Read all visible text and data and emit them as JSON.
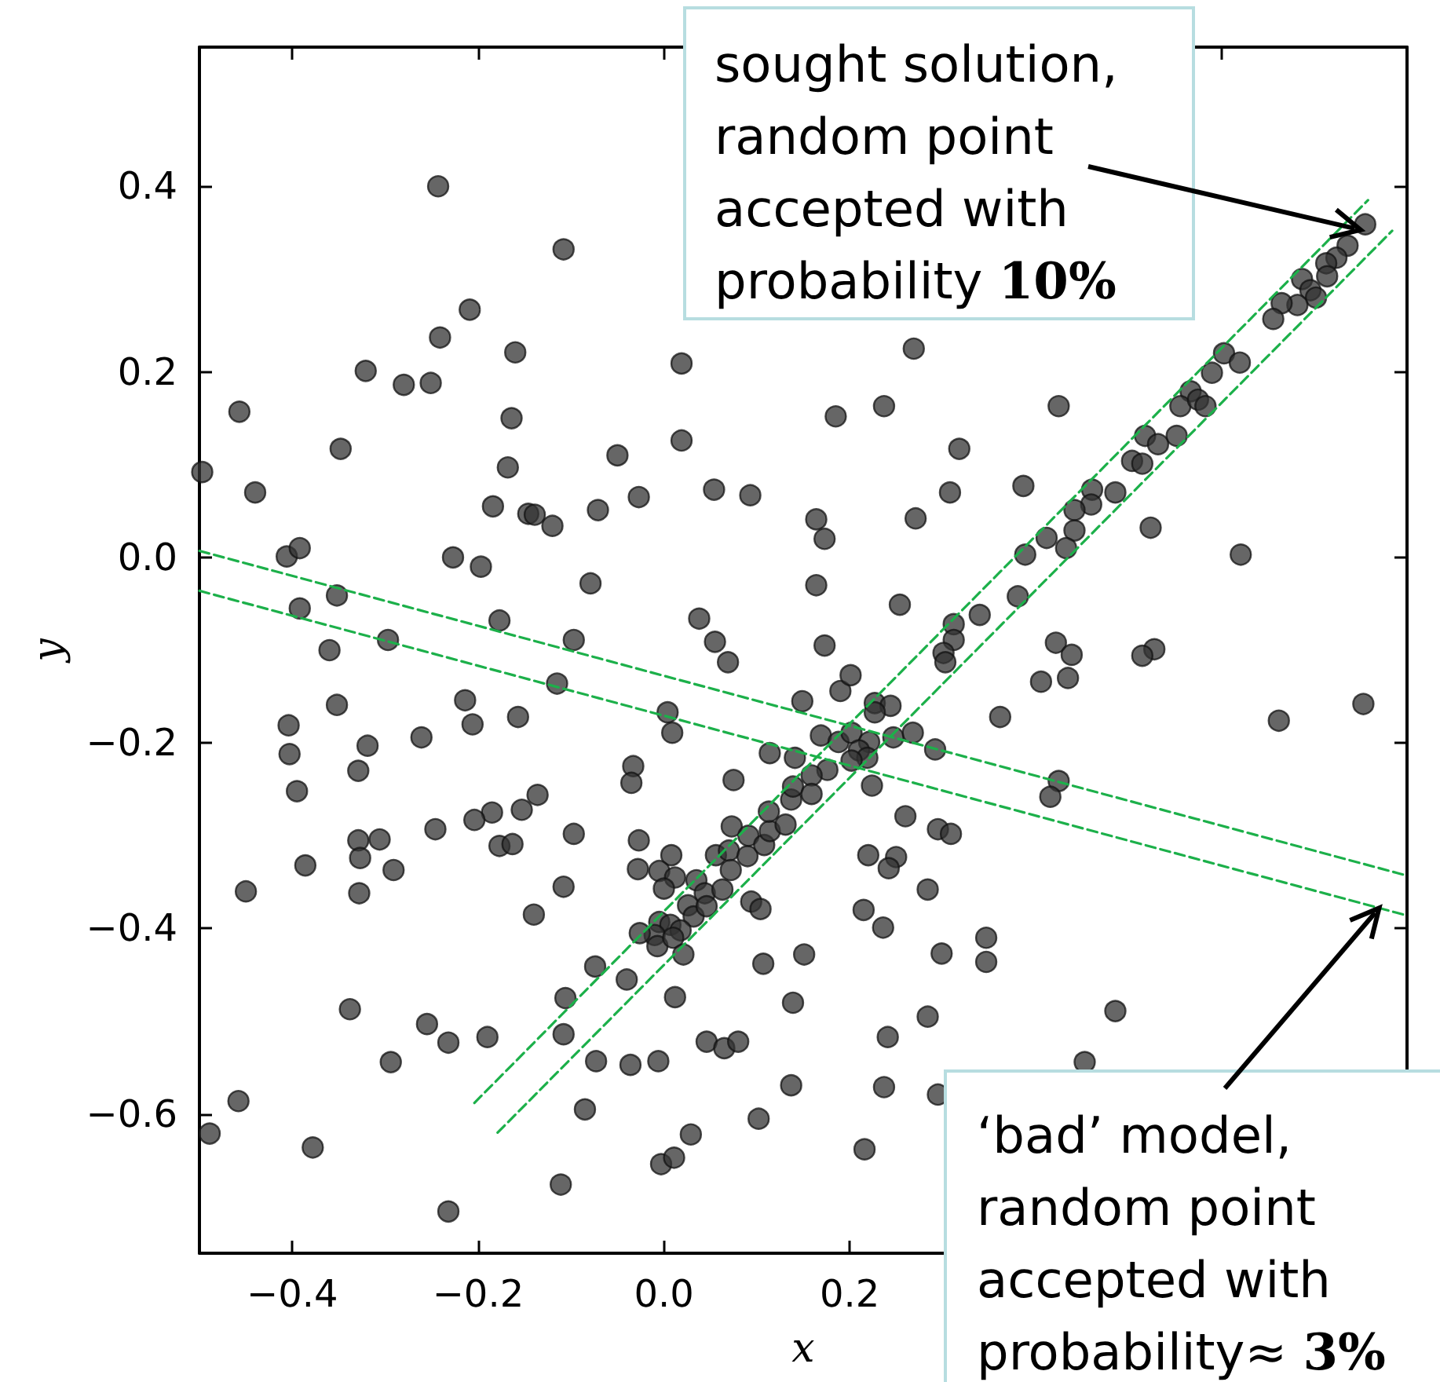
{
  "chart_data": {
    "type": "scatter",
    "xlabel": "x",
    "ylabel": "y",
    "xlim": [
      -0.5,
      0.8
    ],
    "ylim": [
      -0.75,
      0.55
    ],
    "xticks": [
      {
        "value": -0.4,
        "label": "−0.4"
      },
      {
        "value": -0.2,
        "label": "−0.2"
      },
      {
        "value": 0,
        "label": "0.0"
      },
      {
        "value": 0.2,
        "label": "0.2"
      },
      {
        "value": 0.4,
        "label": null
      },
      {
        "value": 0.6,
        "label": null
      },
      {
        "value": 0.8,
        "label": null
      }
    ],
    "yticks": [
      {
        "value": -0.6,
        "label": "−0.6"
      },
      {
        "value": -0.4,
        "label": "−0.4"
      },
      {
        "value": -0.2,
        "label": "−0.2"
      },
      {
        "value": 0,
        "label": "0.0"
      },
      {
        "value": 0.2,
        "label": "0.2"
      },
      {
        "value": 0.4,
        "label": "0.4"
      }
    ],
    "line_style": "dashed",
    "series": [
      {
        "color": "#333333",
        "marker": "circle",
        "x": [
          -0.497,
          -0.243,
          -0.108,
          -0.209,
          -0.241,
          -0.16,
          -0.321,
          -0.28,
          -0.251,
          0.019,
          -0.457,
          -0.164,
          -0.348,
          0.019,
          -0.05,
          -0.168,
          -0.44,
          -0.184,
          -0.146,
          -0.139,
          -0.12,
          -0.071,
          -0.027,
          0.054,
          0.093,
          0.164,
          -0.406,
          -0.392,
          -0.227,
          -0.197,
          -0.079,
          -0.352,
          -0.392,
          -0.177,
          0.038,
          0.055,
          -0.097,
          -0.297,
          -0.36,
          0.164,
          0.069,
          -0.115,
          -0.352,
          -0.214,
          -0.157,
          -0.206,
          -0.404,
          0.004,
          0.009,
          0.149,
          -0.403,
          -0.319,
          -0.261,
          -0.329,
          -0.395,
          -0.033,
          -0.035,
          0.114,
          0.141,
          0.075,
          -0.136,
          -0.153,
          -0.185,
          -0.204,
          -0.246,
          -0.097,
          -0.177,
          -0.163,
          -0.329,
          -0.306,
          -0.327,
          -0.386,
          -0.291,
          -0.45,
          -0.328,
          -0.108,
          -0.14,
          -0.027,
          -0.028,
          0.008,
          -0.005,
          0.012,
          0.0,
          0.035,
          0.044,
          0.026,
          0.032,
          0.046,
          -0.005,
          0.007,
          0.018,
          -0.01,
          -0.007,
          0.01,
          -0.026,
          0.021,
          0.056,
          0.07,
          0.072,
          0.063,
          0.073,
          0.09,
          0.091,
          0.108,
          0.114,
          0.113,
          0.131,
          0.137,
          0.139,
          0.094,
          0.104,
          0.107,
          0.151,
          0.139,
          0.137,
          0.102,
          -0.074,
          -0.04,
          0.012,
          -0.106,
          -0.108,
          -0.073,
          -0.036,
          -0.006,
          0.046,
          0.065,
          0.08,
          -0.085,
          0.029,
          -0.003,
          0.011,
          -0.111,
          -0.232,
          -0.378,
          -0.458,
          -0.489,
          -0.338,
          -0.255,
          -0.232,
          -0.19,
          -0.294,
          0.755,
          0.736,
          0.724,
          0.713,
          0.714,
          0.687,
          0.696,
          0.702,
          0.682,
          0.665,
          0.656,
          0.603,
          0.62,
          0.59,
          0.567,
          0.556,
          0.575,
          0.583,
          0.552,
          0.518,
          0.532,
          0.504,
          0.515,
          0.486,
          0.461,
          0.46,
          0.442,
          0.412,
          0.442,
          0.433,
          0.389,
          0.381,
          0.34,
          0.312,
          0.312,
          0.301,
          0.269,
          0.237,
          0.185,
          0.425,
          0.318,
          0.387,
          0.308,
          0.173,
          0.271,
          0.524,
          0.621,
          0.254,
          0.173,
          0.422,
          0.439,
          0.528,
          0.515,
          0.303,
          0.435,
          0.406,
          0.362,
          0.662,
          0.753,
          0.19,
          0.201,
          0.227,
          0.244,
          0.227,
          0.169,
          0.188,
          0.202,
          0.221,
          0.21,
          0.219,
          0.202,
          0.247,
          0.268,
          0.292,
          0.176,
          0.159,
          0.224,
          0.159,
          0.425,
          0.416,
          0.26,
          0.295,
          0.309,
          0.22,
          0.25,
          0.242,
          0.284,
          0.215,
          0.236,
          0.347,
          0.347,
          0.299,
          0.486,
          0.284,
          0.241,
          0.453,
          0.237,
          0.295,
          0.216
        ],
        "values": [
          0.092,
          0.4,
          0.332,
          0.267,
          0.237,
          0.221,
          0.201,
          0.186,
          0.188,
          0.209,
          0.157,
          0.15,
          0.117,
          0.126,
          0.11,
          0.097,
          0.07,
          0.055,
          0.047,
          0.046,
          0.034,
          0.051,
          0.065,
          0.073,
          0.067,
          0.041,
          0.001,
          0.01,
          0.0,
          -0.01,
          -0.028,
          -0.041,
          -0.055,
          -0.068,
          -0.066,
          -0.091,
          -0.089,
          -0.089,
          -0.1,
          -0.03,
          -0.113,
          -0.136,
          -0.159,
          -0.154,
          -0.172,
          -0.18,
          -0.181,
          -0.167,
          -0.189,
          -0.155,
          -0.212,
          -0.203,
          -0.194,
          -0.23,
          -0.252,
          -0.225,
          -0.243,
          -0.211,
          -0.216,
          -0.24,
          -0.256,
          -0.272,
          -0.275,
          -0.283,
          -0.293,
          -0.298,
          -0.311,
          -0.309,
          -0.305,
          -0.304,
          -0.324,
          -0.332,
          -0.337,
          -0.36,
          -0.362,
          -0.355,
          -0.385,
          -0.305,
          -0.336,
          -0.321,
          -0.338,
          -0.345,
          -0.357,
          -0.348,
          -0.362,
          -0.375,
          -0.387,
          -0.376,
          -0.393,
          -0.396,
          -0.402,
          -0.407,
          -0.419,
          -0.41,
          -0.405,
          -0.428,
          -0.321,
          -0.316,
          -0.337,
          -0.358,
          -0.29,
          -0.322,
          -0.3,
          -0.31,
          -0.295,
          -0.274,
          -0.288,
          -0.261,
          -0.247,
          -0.371,
          -0.379,
          -0.438,
          -0.428,
          -0.48,
          -0.569,
          -0.605,
          -0.441,
          -0.455,
          -0.474,
          -0.475,
          -0.514,
          -0.543,
          -0.547,
          -0.543,
          -0.522,
          -0.529,
          -0.522,
          -0.595,
          -0.622,
          -0.654,
          -0.647,
          -0.676,
          -0.705,
          -0.636,
          -0.586,
          -0.621,
          -0.487,
          -0.503,
          -0.523,
          -0.517,
          -0.544,
          0.359,
          0.336,
          0.323,
          0.317,
          0.303,
          0.3,
          0.288,
          0.28,
          0.272,
          0.274,
          0.257,
          0.22,
          0.21,
          0.199,
          0.179,
          0.163,
          0.17,
          0.163,
          0.131,
          0.131,
          0.122,
          0.104,
          0.101,
          0.07,
          0.073,
          0.057,
          0.051,
          0.021,
          0.029,
          0.01,
          0.003,
          -0.042,
          -0.062,
          -0.072,
          -0.089,
          -0.103,
          0.225,
          0.163,
          0.152,
          0.163,
          0.117,
          0.077,
          0.07,
          0.02,
          0.042,
          0.032,
          0.003,
          -0.051,
          -0.095,
          -0.092,
          -0.105,
          -0.099,
          -0.106,
          -0.113,
          -0.13,
          -0.134,
          -0.172,
          -0.176,
          -0.158,
          -0.144,
          -0.127,
          -0.157,
          -0.16,
          -0.167,
          -0.192,
          -0.199,
          -0.189,
          -0.199,
          -0.208,
          -0.216,
          -0.219,
          -0.194,
          -0.189,
          -0.207,
          -0.229,
          -0.235,
          -0.246,
          -0.255,
          -0.241,
          -0.258,
          -0.279,
          -0.293,
          -0.298,
          -0.321,
          -0.323,
          -0.335,
          -0.358,
          -0.38,
          -0.399,
          -0.41,
          -0.436,
          -0.427,
          -0.489,
          -0.495,
          -0.517,
          -0.544,
          -0.571,
          -0.579,
          -0.638
        ]
      },
      {
        "type": "line",
        "color": "#1cb04a",
        "x": [
          -0.204,
          0.758
        ],
        "values": [
          -0.588,
          0.385
        ]
      },
      {
        "type": "line",
        "color": "#1cb04a",
        "x": [
          -0.179,
          0.784
        ],
        "values": [
          -0.62,
          0.352
        ]
      },
      {
        "type": "line",
        "color": "#1cb04a",
        "x": [
          -0.5,
          0.8
        ],
        "values": [
          0.007,
          -0.343
        ]
      },
      {
        "type": "line",
        "color": "#1cb04a",
        "x": [
          -0.5,
          0.8
        ],
        "values": [
          -0.036,
          -0.386
        ]
      }
    ],
    "annotations": [
      {
        "text": "sought solution,\nrandom point\naccepted with\nprobability 10%",
        "x": 0.75,
        "y": 0.353
      },
      {
        "text": "‘bad’ model,\nrandom point\naccepted with\nprobability≈ 3%",
        "x": 0.77,
        "y": -0.378
      }
    ]
  }
}
